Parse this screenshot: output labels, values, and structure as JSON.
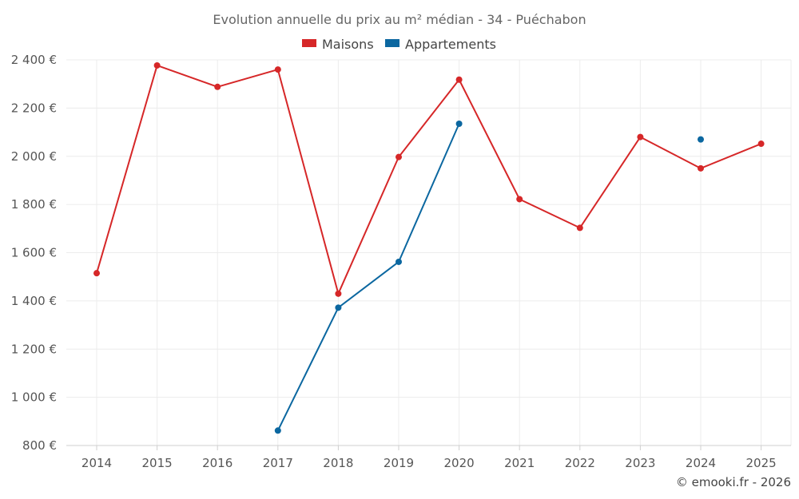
{
  "chart_data": {
    "type": "line",
    "title": "Evolution annuelle du prix au m² médian - 34 - Puéchabon",
    "categories": [
      "2014",
      "2015",
      "2016",
      "2017",
      "2018",
      "2019",
      "2020",
      "2021",
      "2022",
      "2023",
      "2024",
      "2025"
    ],
    "series": [
      {
        "name": "Maisons",
        "color": "#d62728",
        "values": [
          1515,
          2377,
          2288,
          2360,
          1430,
          1997,
          2318,
          1822,
          1703,
          2080,
          1950,
          2052
        ]
      },
      {
        "name": "Appartements",
        "color": "#0b67a0",
        "values": [
          null,
          null,
          null,
          862,
          1372,
          1562,
          2135,
          null,
          null,
          null,
          2070,
          null
        ]
      }
    ],
    "ylim": [
      800,
      2400
    ],
    "yticks": [
      800,
      1000,
      1200,
      1400,
      1600,
      1800,
      2000,
      2200,
      2400
    ],
    "ytick_labels": [
      "800 €",
      "1 000 €",
      "1 200 €",
      "1 400 €",
      "1 600 €",
      "1 800 €",
      "2 000 €",
      "2 200 €",
      "2 400 €"
    ],
    "xlabel": "",
    "ylabel": "",
    "legend_position": "top-center",
    "grid": true
  },
  "credit": "© emooki.fr - 2026"
}
